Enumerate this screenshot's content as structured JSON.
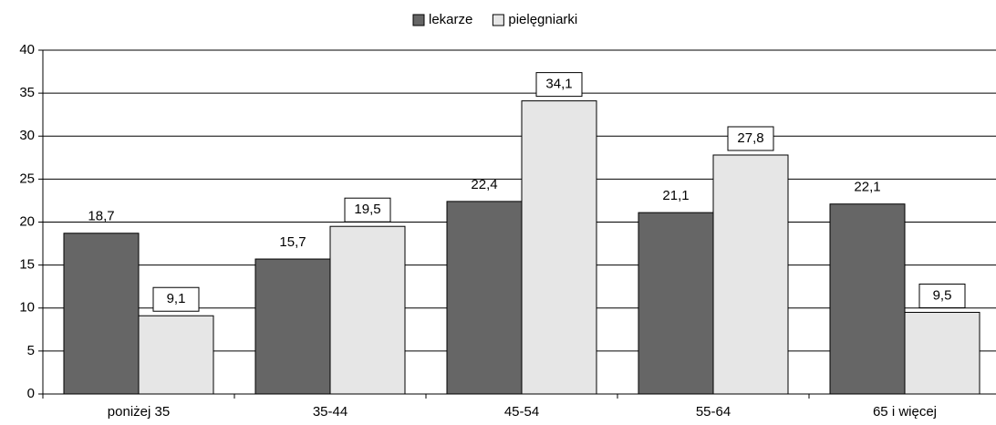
{
  "chart_data": {
    "type": "bar",
    "categories": [
      "poniżej 35",
      "35-44",
      "45-54",
      "55-64",
      "65 i więcej"
    ],
    "series": [
      {
        "name": "lekarze",
        "color": "#666666",
        "values": [
          18.7,
          15.7,
          22.4,
          21.1,
          22.1
        ],
        "value_labels": [
          "18,7",
          "15,7",
          "22,4",
          "21,1",
          "22,1"
        ]
      },
      {
        "name": "pielęgniarki",
        "color": "#e6e6e6",
        "values": [
          9.1,
          19.5,
          34.1,
          27.8,
          9.5
        ],
        "value_labels": [
          "9,1",
          "19,5",
          "34,1",
          "27,8",
          "9,5"
        ]
      }
    ],
    "ylim": [
      0,
      40
    ],
    "yticks": [
      0,
      5,
      10,
      15,
      20,
      25,
      30,
      35,
      40
    ],
    "grid": true,
    "legend": "top"
  }
}
